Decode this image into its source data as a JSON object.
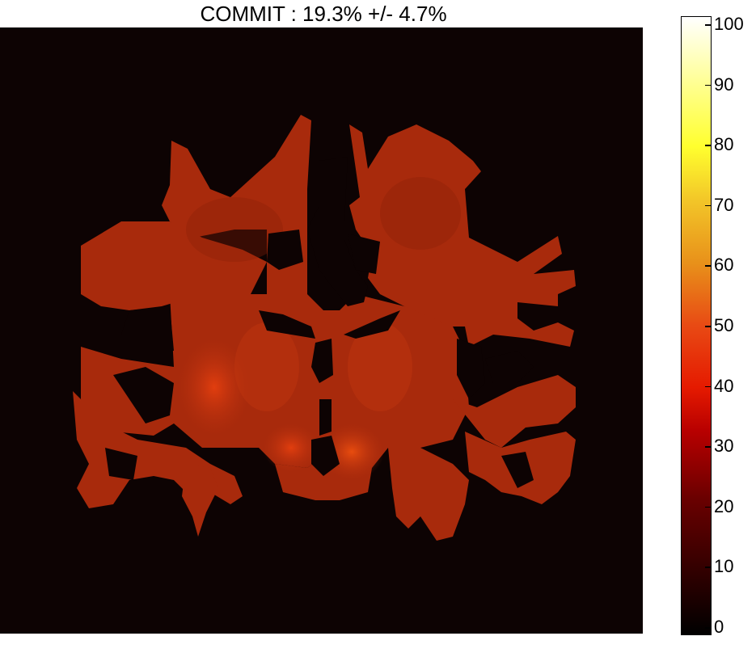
{
  "title": "COMMIT : 19.3% +/- 4.7%",
  "image": {
    "description_icon": "brain-coronal-slice-map",
    "background_color": "#0d0303",
    "tissue_color": "#b8300f"
  },
  "colorbar": {
    "min": 0,
    "max": 100,
    "ticks": [
      "0",
      "10",
      "20",
      "30",
      "40",
      "50",
      "60",
      "70",
      "80",
      "90",
      "100"
    ],
    "colormap": "hot"
  }
}
